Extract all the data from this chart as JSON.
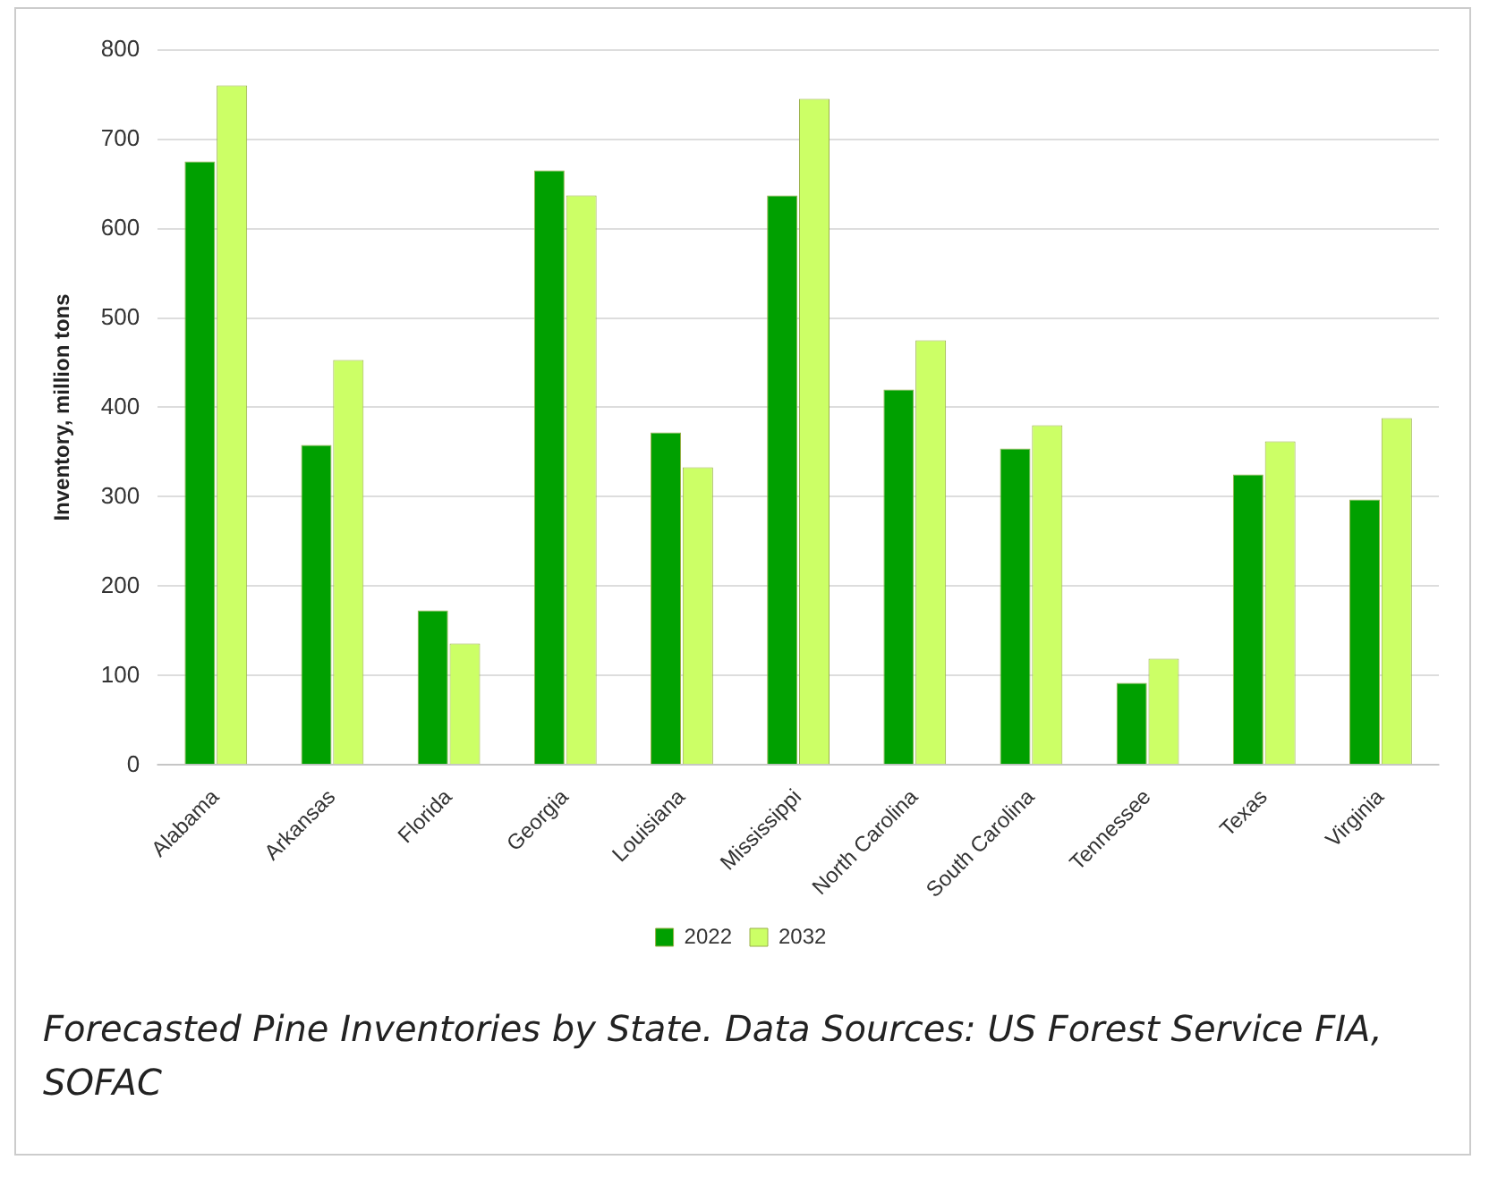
{
  "chart_data": {
    "type": "bar",
    "ylabel": "Inventory, million tons",
    "categories": [
      "Alabama",
      "Arkansas",
      "Florida",
      "Georgia",
      "Louisiana",
      "Mississippi",
      "North Carolina",
      "South Carolina",
      "Tennessee",
      "Texas",
      "Virginia"
    ],
    "series": [
      {
        "name": "2022",
        "color": "#00a000",
        "values": [
          675,
          358,
          173,
          665,
          372,
          637,
          420,
          354,
          92,
          325,
          297
        ]
      },
      {
        "name": "2032",
        "color": "#ccff66",
        "values": [
          760,
          453,
          136,
          637,
          333,
          745,
          475,
          380,
          119,
          362,
          388
        ]
      }
    ],
    "ylim": [
      0,
      800
    ],
    "yticks": [
      0,
      100,
      200,
      300,
      400,
      500,
      600,
      700,
      800
    ],
    "grid": "y",
    "legend": "bottom",
    "annotations": [
      "Forecasted Pine Inventories by State. Data Sources: US Forest Service FIA, SOFAC"
    ]
  }
}
